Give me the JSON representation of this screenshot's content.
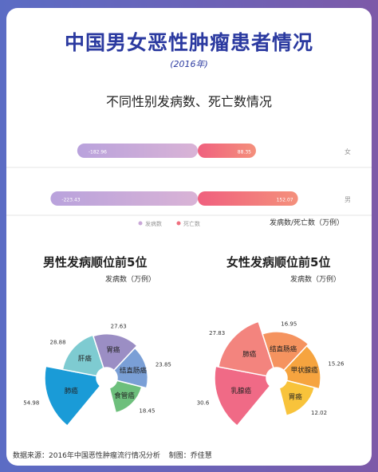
{
  "header": {
    "title": "中国男女恶性肿瘤患者情况",
    "year": "(2016年)"
  },
  "bar_section": {
    "title": "不同性别发病数、死亡数情况",
    "unit": "发病数/死亡数（万例）"
  },
  "left_pie": {
    "title": "男性发病顺位前5位",
    "unit": "发病数（万例）"
  },
  "right_pie": {
    "title": "女性发病顺位前5位",
    "unit": "发病数（万例）"
  },
  "footer": {
    "source": "数据来源：2016年中国恶性肿瘤流行情况分析",
    "author": "制图：乔佳慧"
  },
  "colors": {
    "incidence": "#c9a7d8",
    "death": "#ef6f7e",
    "title": "#2b3aa0"
  },
  "chart_data": [
    {
      "type": "bar",
      "title": "不同性别发病数、死亡数情况",
      "categories": [
        "女",
        "男"
      ],
      "series": [
        {
          "name": "发病数",
          "values": [
            -182.96,
            -223.43
          ],
          "labels": [
            "-182.96",
            "-223.43"
          ]
        },
        {
          "name": "死亡数",
          "values": [
            88.35,
            152.07
          ],
          "labels": [
            "88.35",
            "152.07"
          ]
        }
      ],
      "xlim": [
        -230,
        230
      ],
      "ylabel": "发病数/死亡数（万例）",
      "legend": "bottom-left"
    },
    {
      "type": "pie",
      "title": "男性发病顺位前5位",
      "categories": [
        "肺癌",
        "肝癌",
        "胃癌",
        "结直肠癌",
        "食管癌"
      ],
      "values": [
        54.98,
        28.88,
        27.63,
        23.85,
        18.45
      ],
      "value_labels": [
        "54.98",
        "28.88",
        "27.63",
        "23.85",
        "18.45"
      ],
      "colors": [
        "#1a9bd7",
        "#7ecbd1",
        "#9b8ec4",
        "#7a9fd6",
        "#6dbf7c"
      ],
      "unit": "发病数（万例）"
    },
    {
      "type": "pie",
      "title": "女性发病顺位前5位",
      "categories": [
        "乳腺癌",
        "肺癌",
        "结直肠癌",
        "甲状腺癌",
        "胃癌"
      ],
      "values": [
        30.6,
        27.83,
        16.95,
        15.26,
        12.02
      ],
      "value_labels": [
        "30.6",
        "27.83",
        "16.95",
        "15.26",
        "12.02"
      ],
      "colors": [
        "#f06a86",
        "#f3847e",
        "#f5935f",
        "#f6a43f",
        "#f8c33b"
      ],
      "unit": "发病数（万例）"
    }
  ]
}
